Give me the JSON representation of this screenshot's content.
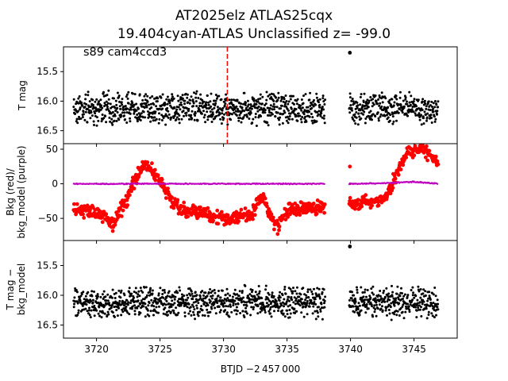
{
  "chart_data": {
    "type": "scatter",
    "title": "AT2025elz  ATLAS25cqx",
    "subtitle": "19.404cyan-ATLAS Unclassified z= -99.0",
    "annotation": "s89 cam4ccd3",
    "xlabel": "BTJD −2 457 000",
    "xlim": [
      3717.4,
      3748.4
    ],
    "x_ticks": [
      3720,
      3725,
      3730,
      3735,
      3740,
      3745
    ],
    "x_tick_labels": [
      "3720",
      "3725",
      "3730",
      "3735",
      "3740",
      "3745"
    ],
    "marker_line_x": 3730.3,
    "data_gap": [
      3738.0,
      3739.9
    ],
    "panels": [
      {
        "id": "tmag",
        "ylabel": "T mag",
        "ylim": [
          16.72,
          15.08
        ],
        "inverted": true,
        "y_ticks": [
          15.5,
          16.0,
          16.5
        ],
        "y_tick_labels": [
          "15.5",
          "16.0",
          "16.5"
        ],
        "series": [
          {
            "color": "#000000",
            "segments": [
              {
                "x_start": 3718.2,
                "x_end": 3738.0,
                "center": 16.12,
                "spread": 0.3
              },
              {
                "x_start": 3739.9,
                "x_end": 3746.9,
                "center": 16.12,
                "spread": 0.3
              }
            ],
            "outliers": [
              {
                "x": 3739.95,
                "y": 15.18
              }
            ]
          }
        ]
      },
      {
        "id": "bkg",
        "ylabel": "Bkg (red)/\nbkg_model (purple)",
        "ylim": [
          -82,
          58
        ],
        "inverted": false,
        "y_ticks": [
          -50,
          0,
          50
        ],
        "y_tick_labels": [
          "−50",
          "0",
          "50"
        ],
        "series": [
          {
            "name": "Bkg",
            "color": "#ff0000",
            "curve": [
              [
                3718.2,
                -35
              ],
              [
                3719.0,
                -38
              ],
              [
                3720.0,
                -40
              ],
              [
                3720.8,
                -50
              ],
              [
                3721.3,
                -62
              ],
              [
                3721.6,
                -48
              ],
              [
                3722.0,
                -35
              ],
              [
                3722.5,
                -18
              ],
              [
                3723.0,
                5
              ],
              [
                3723.5,
                22
              ],
              [
                3723.9,
                28
              ],
              [
                3724.3,
                20
              ],
              [
                3724.8,
                10
              ],
              [
                3725.2,
                0
              ],
              [
                3725.6,
                -15
              ],
              [
                3726.0,
                -25
              ],
              [
                3726.5,
                -37
              ],
              [
                3727.5,
                -40
              ],
              [
                3728.5,
                -43
              ],
              [
                3729.5,
                -47
              ],
              [
                3730.2,
                -52
              ],
              [
                3730.8,
                -48
              ],
              [
                3731.5,
                -45
              ],
              [
                3732.3,
                -42
              ],
              [
                3732.9,
                -22
              ],
              [
                3733.3,
                -25
              ],
              [
                3733.6,
                -42
              ],
              [
                3734.0,
                -58
              ],
              [
                3734.3,
                -62
              ],
              [
                3734.6,
                -50
              ],
              [
                3735.0,
                -40
              ],
              [
                3735.8,
                -38
              ],
              [
                3736.8,
                -35
              ],
              [
                3738.0,
                -33
              ]
            ],
            "curve2": [
              [
                3739.9,
                -30
              ],
              [
                3740.8,
                -28
              ],
              [
                3741.8,
                -25
              ],
              [
                3742.6,
                -22
              ],
              [
                3743.1,
                -10
              ],
              [
                3743.5,
                10
              ],
              [
                3743.9,
                25
              ],
              [
                3744.3,
                38
              ],
              [
                3744.7,
                48
              ],
              [
                3745.2,
                52
              ],
              [
                3745.7,
                50
              ],
              [
                3746.2,
                42
              ],
              [
                3746.7,
                30
              ],
              [
                3746.9,
                25
              ]
            ],
            "spread": 12,
            "outliers": [
              {
                "x": 3739.95,
                "y": 25
              }
            ]
          },
          {
            "name": "bkg_model",
            "color": "#bf00bf",
            "curve": [
              [
                3718.2,
                0
              ],
              [
                3730.0,
                0
              ],
              [
                3738.0,
                0
              ]
            ],
            "curve2": [
              [
                3739.9,
                0
              ],
              [
                3743.0,
                1
              ],
              [
                3745.0,
                3
              ],
              [
                3746.9,
                0
              ]
            ],
            "spread": 1
          }
        ]
      },
      {
        "id": "tmag_bkg",
        "ylabel": "T mag −\nbkg_model",
        "ylim": [
          16.72,
          15.08
        ],
        "inverted": true,
        "y_ticks": [
          15.5,
          16.0,
          16.5
        ],
        "y_tick_labels": [
          "15.5",
          "16.0",
          "16.5"
        ],
        "series": [
          {
            "color": "#000000",
            "segments": [
              {
                "x_start": 3718.2,
                "x_end": 3738.0,
                "center": 16.12,
                "spread": 0.3
              },
              {
                "x_start": 3739.9,
                "x_end": 3746.9,
                "center": 16.12,
                "spread": 0.3
              }
            ],
            "outliers": [
              {
                "x": 3739.95,
                "y": 15.18
              }
            ]
          }
        ]
      }
    ]
  }
}
